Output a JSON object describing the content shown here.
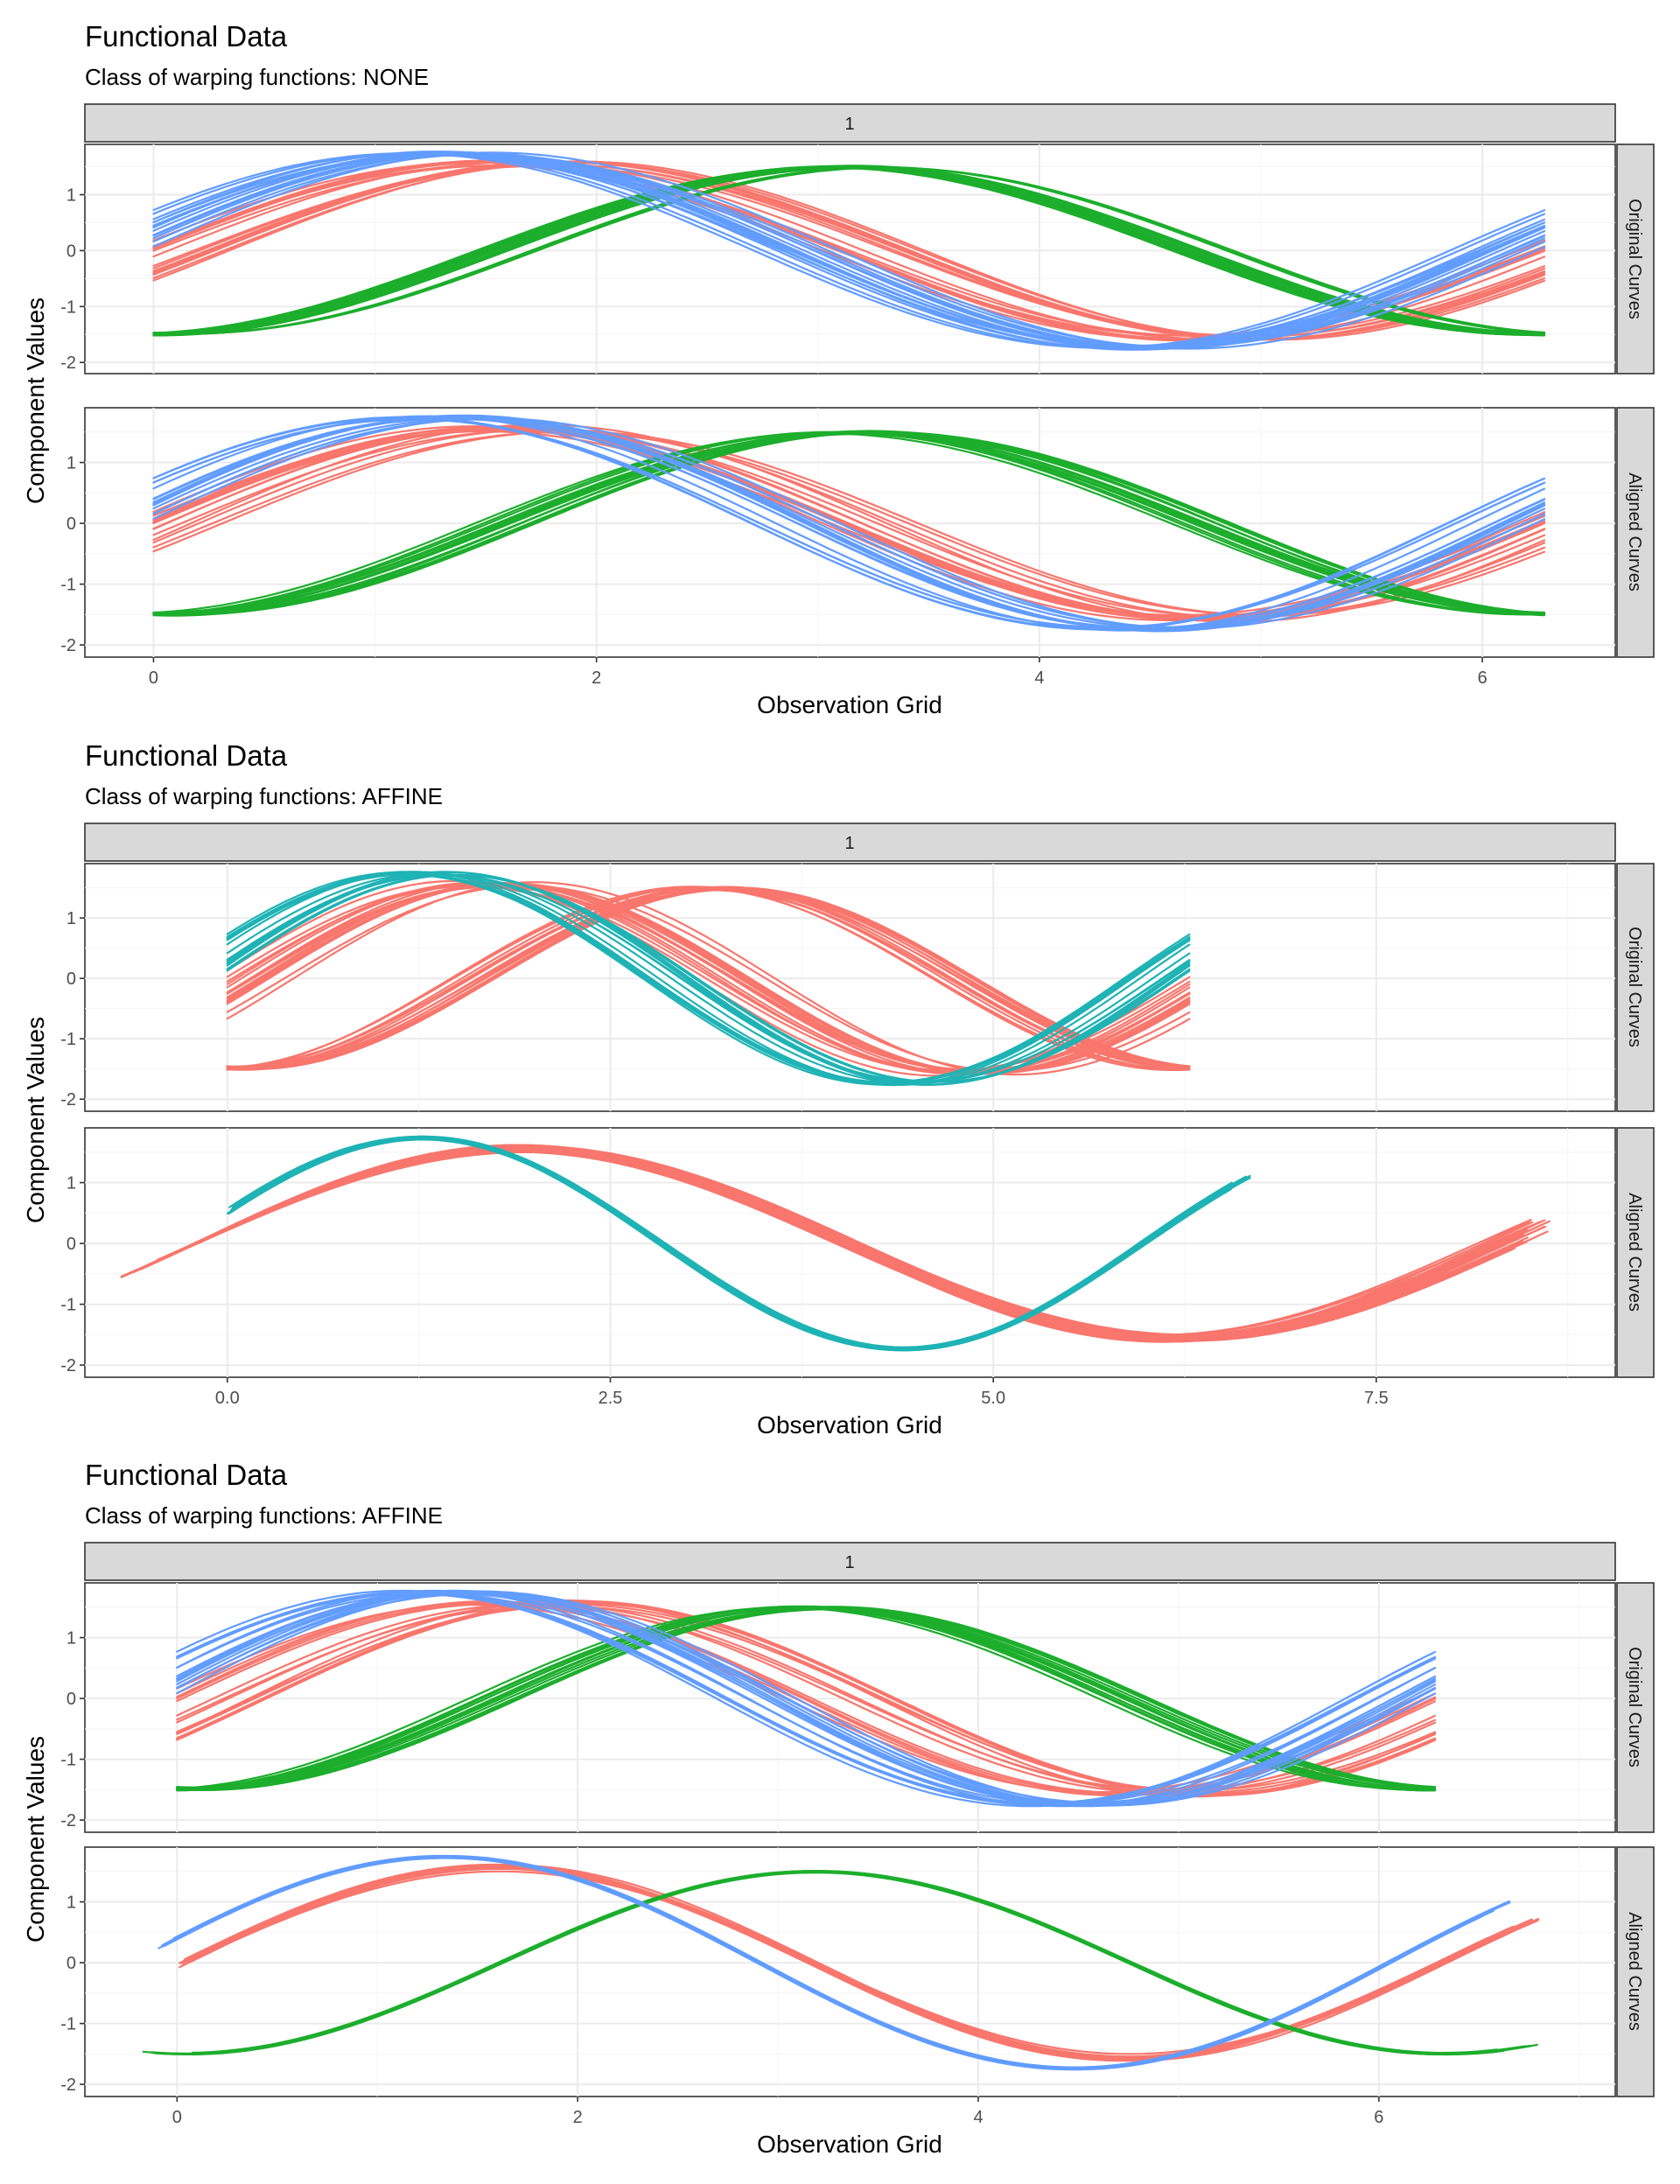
{
  "colors": {
    "red": "#F8766D",
    "green": "#1CAE2C",
    "blue": "#619CFF",
    "teal": "#1FB3B5"
  },
  "x_axis_title": "Observation Grid",
  "y_axis_title": "Component Values",
  "chart_data": [
    {
      "type": "line",
      "title": "Functional Data",
      "subtitle": "Class of warping functions: NONE",
      "column_strip": "1",
      "row_strips": [
        "Original Curves",
        "Aligned Curves"
      ],
      "xlabel": "Observation Grid",
      "ylabel": "Component Values",
      "xlim": [
        -0.31,
        6.6
      ],
      "ylim": [
        -2.2,
        1.9
      ],
      "x_ticks": [
        0,
        2,
        4,
        6
      ],
      "x_tick_labels": [
        "0",
        "2",
        "4",
        "6"
      ],
      "y_ticks": [
        -2,
        -1,
        0,
        1
      ],
      "y_tick_labels": [
        "-2",
        "-1",
        "0",
        "1"
      ],
      "x_range_observed": [
        0,
        6.28
      ],
      "grid": true,
      "legend": "none",
      "series": [
        {
          "color": "red",
          "n_curves": 15,
          "panel": "Original Curves",
          "function": "1.55*sin(x + 0.0) approx, random phase/amplitude",
          "x_range": [
            0,
            6.28
          ]
        },
        {
          "color": "green",
          "n_curves": 15,
          "panel": "Original Curves",
          "function": "1.5*sin(x - 1.6) approx",
          "x_range": [
            0,
            6.28
          ]
        },
        {
          "color": "blue",
          "n_curves": 15,
          "panel": "Original Curves",
          "function": "1.75*sin(x + 0.3) approx",
          "x_range": [
            0,
            6.28
          ]
        },
        {
          "color": "red",
          "n_curves": 15,
          "panel": "Aligned Curves",
          "x_range": [
            0,
            6.28
          ]
        },
        {
          "color": "green",
          "n_curves": 15,
          "panel": "Aligned Curves",
          "x_range": [
            0,
            6.28
          ]
        },
        {
          "color": "blue",
          "n_curves": 15,
          "panel": "Aligned Curves",
          "x_range": [
            0,
            6.28
          ]
        }
      ]
    },
    {
      "type": "line",
      "title": "Functional Data",
      "subtitle": "Class of warping functions: AFFINE",
      "column_strip": "1",
      "row_strips": [
        "Original Curves",
        "Aligned Curves"
      ],
      "xlabel": "Observation Grid",
      "ylabel": "Component Values",
      "xlim": [
        -0.93,
        9.06
      ],
      "ylim": [
        -2.2,
        1.9
      ],
      "x_ticks": [
        0.0,
        2.5,
        5.0,
        7.5
      ],
      "x_tick_labels": [
        "0.0",
        "2.5",
        "5.0",
        "7.5"
      ],
      "y_ticks": [
        -2,
        -1,
        0,
        1
      ],
      "y_tick_labels": [
        "-2",
        "-1",
        "0",
        "1"
      ],
      "grid": true,
      "legend": "none",
      "series": [
        {
          "color": "red",
          "n_curves": 30,
          "panel": "Original Curves",
          "x_range": [
            0,
            6.28
          ]
        },
        {
          "color": "teal",
          "n_curves": 15,
          "panel": "Original Curves",
          "x_range": [
            0,
            6.28
          ]
        },
        {
          "color": "red",
          "n_curves": 30,
          "panel": "Aligned Curves",
          "x_range": [
            -0.7,
            8.65
          ]
        },
        {
          "color": "teal",
          "n_curves": 15,
          "panel": "Aligned Curves",
          "x_range": [
            -0.05,
            6.7
          ]
        }
      ]
    },
    {
      "type": "line",
      "title": "Functional Data",
      "subtitle": "Class of warping functions: AFFINE",
      "column_strip": "1",
      "row_strips": [
        "Original Curves",
        "Aligned Curves"
      ],
      "xlabel": "Observation Grid",
      "ylabel": "Component Values",
      "xlim": [
        -0.46,
        7.18
      ],
      "ylim": [
        -2.2,
        1.9
      ],
      "x_ticks": [
        0,
        2,
        4,
        6
      ],
      "x_tick_labels": [
        "0",
        "2",
        "4",
        "6"
      ],
      "y_ticks": [
        -2,
        -1,
        0,
        1
      ],
      "y_tick_labels": [
        "-2",
        "-1",
        "0",
        "1"
      ],
      "grid": true,
      "legend": "none",
      "series": [
        {
          "color": "red",
          "n_curves": 15,
          "panel": "Original Curves",
          "x_range": [
            0,
            6.28
          ]
        },
        {
          "color": "green",
          "n_curves": 15,
          "panel": "Original Curves",
          "x_range": [
            0,
            6.28
          ]
        },
        {
          "color": "blue",
          "n_curves": 15,
          "panel": "Original Curves",
          "x_range": [
            0,
            6.28
          ]
        },
        {
          "color": "red",
          "n_curves": 15,
          "panel": "Aligned Curves",
          "x_range": [
            0,
            6.8
          ]
        },
        {
          "color": "green",
          "n_curves": 15,
          "panel": "Aligned Curves",
          "x_range": [
            -0.2,
            6.8
          ]
        },
        {
          "color": "blue",
          "n_curves": 15,
          "panel": "Aligned Curves",
          "x_range": [
            -0.1,
            6.7
          ]
        }
      ]
    }
  ]
}
